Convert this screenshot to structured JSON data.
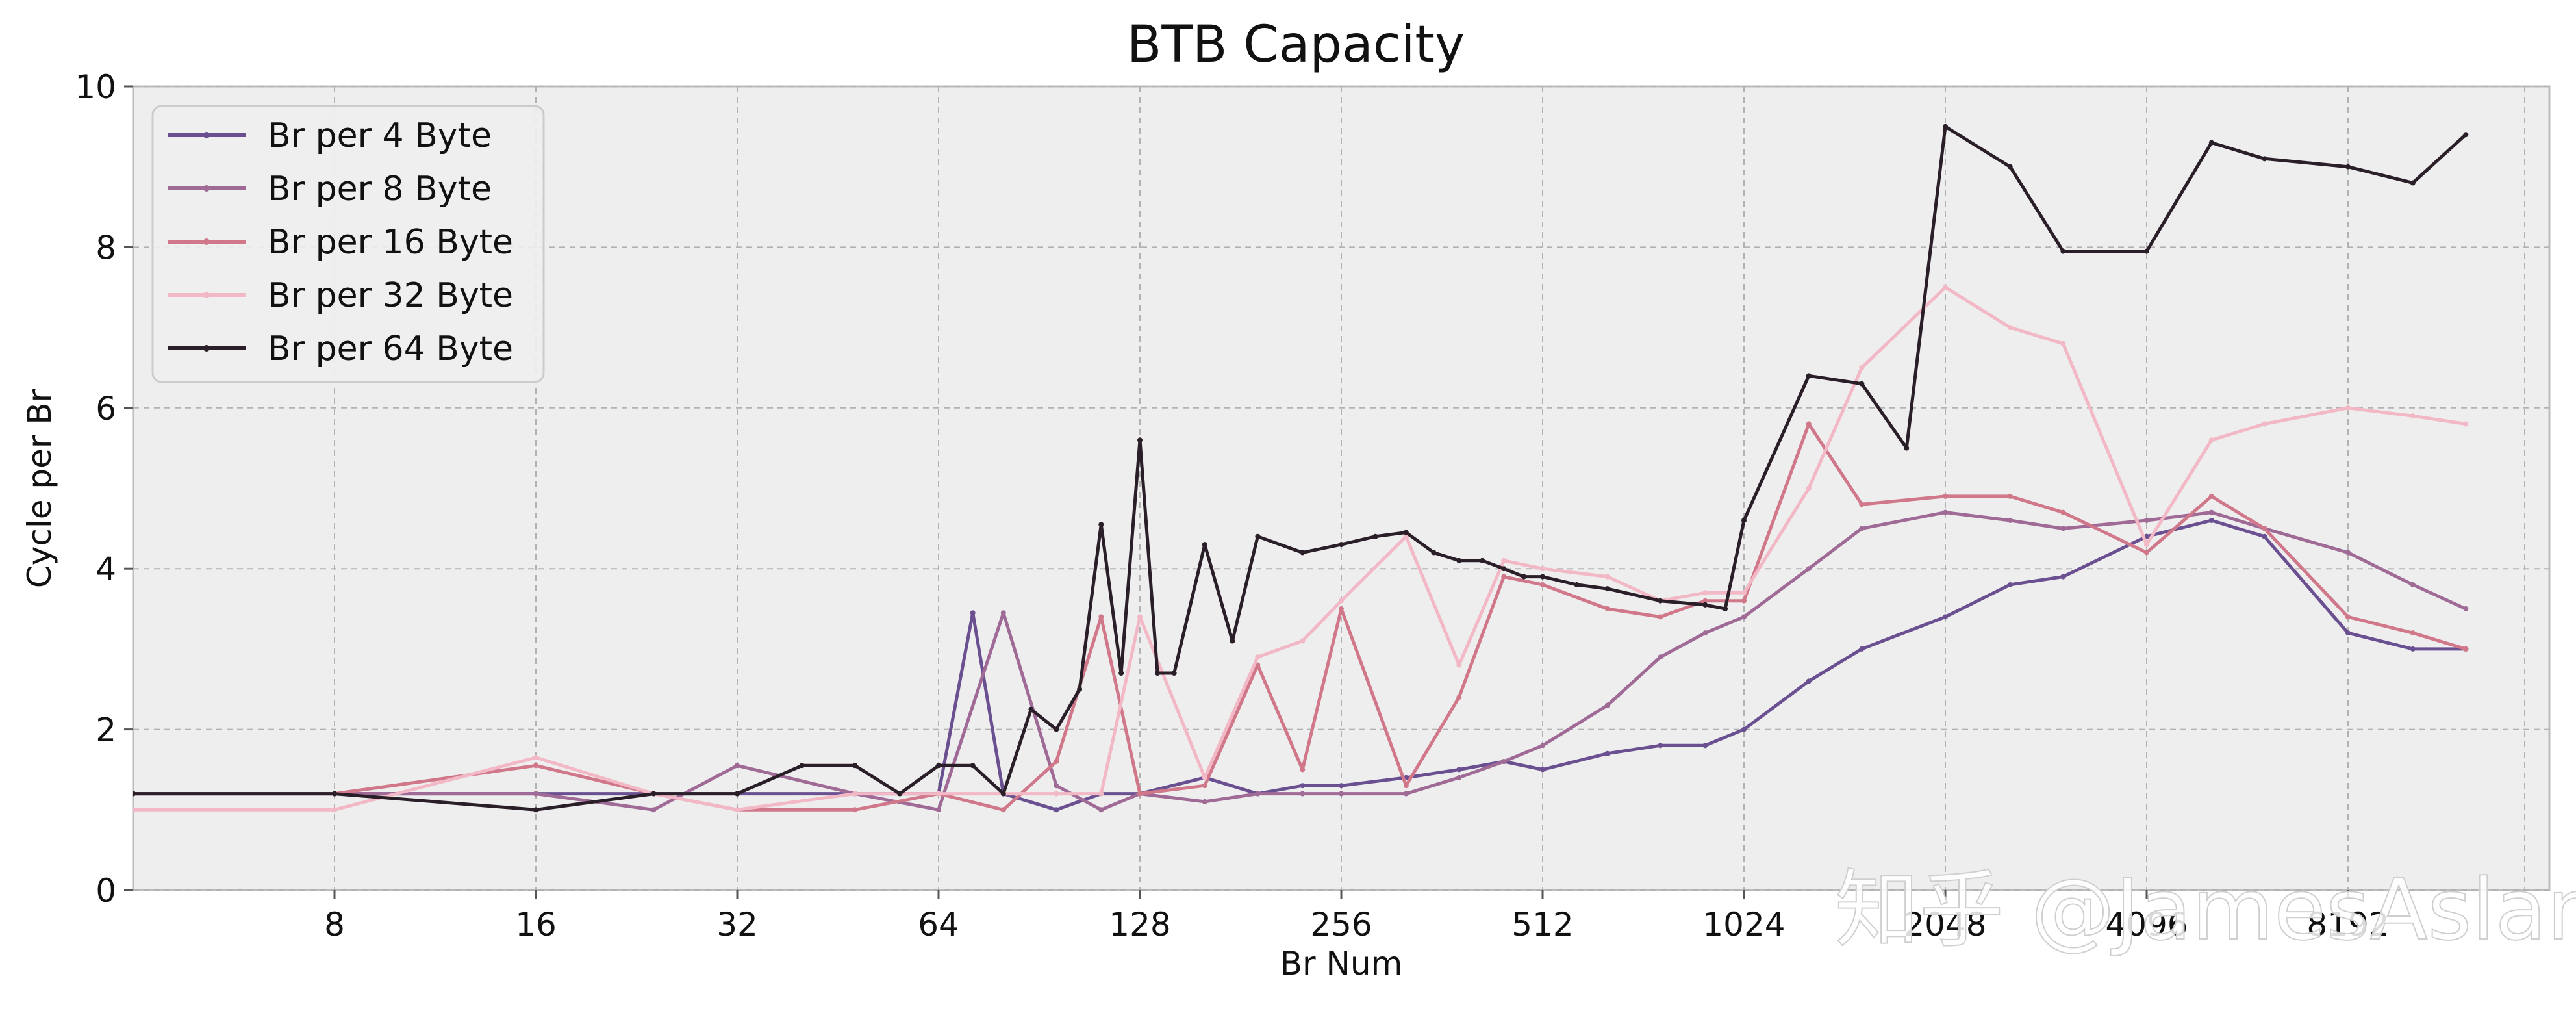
{
  "chart_data": {
    "type": "line",
    "title": "BTB Capacity",
    "xlabel": "Br Num",
    "ylabel": "Cycle per Br",
    "xscale": "log2",
    "xlim": [
      4,
      16384
    ],
    "ylim": [
      0,
      10
    ],
    "x_ticks": [
      "8",
      "16",
      "32",
      "64",
      "128",
      "256",
      "512",
      "1024",
      "2048",
      "4096",
      "8192"
    ],
    "y_ticks": [
      "0",
      "2",
      "4",
      "6",
      "8",
      "10"
    ],
    "grid": true,
    "legend_position": "top-left",
    "series": [
      {
        "name": "Br per 4 Byte",
        "color": "#6a5090",
        "x": [
          4,
          8,
          16,
          24,
          32,
          48,
          64,
          72,
          80,
          96,
          112,
          128,
          160,
          192,
          224,
          256,
          320,
          384,
          448,
          512,
          640,
          768,
          896,
          1024,
          1280,
          1536,
          2048,
          2560,
          3072,
          4096,
          5120,
          6144,
          8192,
          10240,
          12288
        ],
        "values": [
          1.2,
          1.2,
          1.2,
          1.2,
          1.2,
          1.2,
          1.2,
          3.45,
          1.2,
          1.0,
          1.2,
          1.2,
          1.4,
          1.2,
          1.3,
          1.3,
          1.4,
          1.5,
          1.6,
          1.5,
          1.7,
          1.8,
          1.8,
          2.0,
          2.6,
          3.0,
          3.4,
          3.8,
          3.9,
          4.4,
          4.6,
          4.4,
          3.2,
          3.0,
          3.0
        ]
      },
      {
        "name": "Br per 8 Byte",
        "color": "#a06a96",
        "x": [
          4,
          8,
          16,
          24,
          32,
          48,
          64,
          80,
          96,
          112,
          128,
          160,
          192,
          224,
          256,
          320,
          384,
          448,
          512,
          640,
          768,
          896,
          1024,
          1280,
          1536,
          2048,
          2560,
          3072,
          4096,
          5120,
          6144,
          8192,
          10240,
          12288
        ],
        "values": [
          1.2,
          1.2,
          1.2,
          1.0,
          1.55,
          1.2,
          1.0,
          3.45,
          1.3,
          1.0,
          1.2,
          1.1,
          1.2,
          1.2,
          1.2,
          1.2,
          1.4,
          1.6,
          1.8,
          2.3,
          2.9,
          3.2,
          3.4,
          4.0,
          4.5,
          4.7,
          4.6,
          4.5,
          4.6,
          4.7,
          4.5,
          4.2,
          3.8,
          3.5
        ]
      },
      {
        "name": "Br per 16 Byte",
        "color": "#d0788a",
        "x": [
          4,
          8,
          16,
          24,
          32,
          48,
          64,
          80,
          96,
          112,
          128,
          160,
          192,
          224,
          256,
          320,
          384,
          448,
          512,
          640,
          768,
          896,
          1024,
          1280,
          1536,
          2048,
          2560,
          3072,
          4096,
          5120,
          6144,
          8192,
          10240,
          12288
        ],
        "values": [
          1.2,
          1.2,
          1.55,
          1.2,
          1.0,
          1.0,
          1.2,
          1.0,
          1.6,
          3.4,
          1.2,
          1.3,
          2.8,
          1.5,
          3.5,
          1.3,
          2.4,
          3.9,
          3.8,
          3.5,
          3.4,
          3.6,
          3.6,
          5.8,
          4.8,
          4.9,
          4.9,
          4.7,
          4.2,
          4.9,
          4.5,
          3.4,
          3.2,
          3.0
        ]
      },
      {
        "name": "Br per 32 Byte",
        "color": "#f2b8c6",
        "x": [
          4,
          8,
          16,
          24,
          32,
          48,
          64,
          80,
          96,
          112,
          128,
          160,
          192,
          224,
          256,
          320,
          384,
          448,
          512,
          640,
          768,
          896,
          1024,
          1280,
          1536,
          2048,
          2560,
          3072,
          4096,
          5120,
          6144,
          8192,
          10240,
          12288
        ],
        "values": [
          1.0,
          1.0,
          1.65,
          1.2,
          1.0,
          1.2,
          1.2,
          1.2,
          1.2,
          1.2,
          3.4,
          1.4,
          2.9,
          3.1,
          3.6,
          4.4,
          2.8,
          4.1,
          4.0,
          3.9,
          3.6,
          3.7,
          3.7,
          5.0,
          6.5,
          7.5,
          7.0,
          6.8,
          4.3,
          5.6,
          5.8,
          6.0,
          5.9,
          5.8
        ]
      },
      {
        "name": "Br per 64 Byte",
        "color": "#2a1f28",
        "x": [
          4,
          8,
          16,
          24,
          32,
          40,
          48,
          56,
          64,
          72,
          80,
          88,
          96,
          104,
          112,
          120,
          128,
          136,
          144,
          160,
          176,
          192,
          224,
          256,
          288,
          320,
          352,
          384,
          416,
          448,
          480,
          512,
          576,
          640,
          768,
          896,
          960,
          1024,
          1280,
          1536,
          1792,
          2048,
          2560,
          3072,
          4096,
          5120,
          6144,
          8192,
          10240,
          12288
        ],
        "values": [
          1.2,
          1.2,
          1.0,
          1.2,
          1.2,
          1.55,
          1.55,
          1.2,
          1.55,
          1.55,
          1.2,
          2.25,
          2.0,
          2.5,
          4.55,
          2.7,
          5.6,
          2.7,
          2.7,
          4.3,
          3.1,
          4.4,
          4.2,
          4.3,
          4.4,
          4.45,
          4.2,
          4.1,
          4.1,
          4.0,
          3.9,
          3.9,
          3.8,
          3.75,
          3.6,
          3.55,
          3.5,
          4.6,
          6.4,
          6.3,
          5.5,
          9.5,
          9.0,
          7.95,
          7.95,
          9.3,
          9.1,
          9.0,
          8.8,
          9.4
        ]
      }
    ]
  },
  "watermark": {
    "text": "知乎 @JamesAslan"
  }
}
